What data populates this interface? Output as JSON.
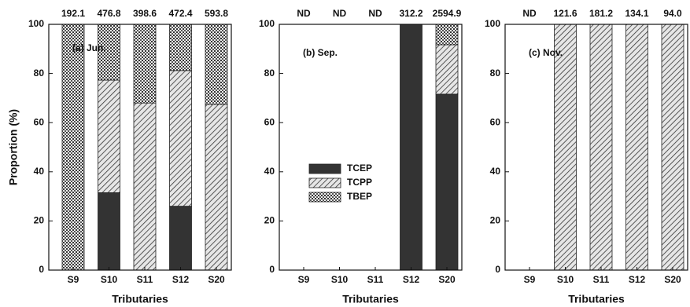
{
  "chart_data": [
    {
      "type": "bar",
      "stacked": true,
      "title": "(a) Jun.",
      "x_label": "Tributaries",
      "y_label": "Proportion (%)",
      "categories": [
        "S9",
        "S10",
        "S11",
        "S12",
        "S20"
      ],
      "top_labels": [
        "192.1",
        "476.8",
        "398.6",
        "472.4",
        "593.8"
      ],
      "series": [
        {
          "name": "TCEP",
          "color": "#333333",
          "pattern": "solid",
          "values": [
            0,
            31.5,
            0,
            26,
            0
          ]
        },
        {
          "name": "TCPP",
          "color": "#333333",
          "pattern": "hatch",
          "values": [
            0,
            45.8,
            68,
            55.2,
            67.4
          ]
        },
        {
          "name": "TBEP",
          "color": "#333333",
          "pattern": "dots",
          "values": [
            100,
            22.7,
            32,
            18.8,
            32.6
          ]
        }
      ],
      "ylim": [
        0,
        100
      ],
      "yticks": [
        0,
        20,
        40,
        60,
        80,
        100
      ],
      "legend": false
    },
    {
      "type": "bar",
      "stacked": true,
      "title": "(b) Sep.",
      "x_label": "Tributaries",
      "categories": [
        "S9",
        "S10",
        "S11",
        "S12",
        "S20"
      ],
      "top_labels": [
        "ND",
        "ND",
        "ND",
        "312.2",
        "2594.9"
      ],
      "series": [
        {
          "name": "TCEP",
          "color": "#333333",
          "pattern": "solid",
          "values": [
            0,
            0,
            0,
            100,
            71.6
          ]
        },
        {
          "name": "TCPP",
          "color": "#333333",
          "pattern": "hatch",
          "values": [
            0,
            0,
            0,
            0,
            20.1
          ]
        },
        {
          "name": "TBEP",
          "color": "#333333",
          "pattern": "dots",
          "values": [
            0,
            0,
            0,
            0,
            8.3
          ]
        }
      ],
      "ylim": [
        0,
        100
      ],
      "yticks": [
        0,
        20,
        40,
        60,
        80,
        100
      ],
      "legend": "center-left"
    },
    {
      "type": "bar",
      "stacked": true,
      "title": "(c) Nov.",
      "x_label": "Tributaries",
      "categories": [
        "S9",
        "S10",
        "S11",
        "S12",
        "S20"
      ],
      "top_labels": [
        "ND",
        "121.6",
        "181.2",
        "134.1",
        "94.0"
      ],
      "series": [
        {
          "name": "TCEP",
          "color": "#333333",
          "pattern": "solid",
          "values": [
            0,
            0,
            0,
            0,
            0
          ]
        },
        {
          "name": "TCPP",
          "color": "#333333",
          "pattern": "hatch",
          "values": [
            0,
            100,
            100,
            100,
            100
          ]
        },
        {
          "name": "TBEP",
          "color": "#333333",
          "pattern": "dots",
          "values": [
            0,
            0,
            0,
            0,
            0
          ]
        }
      ],
      "ylim": [
        0,
        100
      ],
      "yticks": [
        0,
        20,
        40,
        60,
        80,
        100
      ],
      "legend": false
    }
  ]
}
